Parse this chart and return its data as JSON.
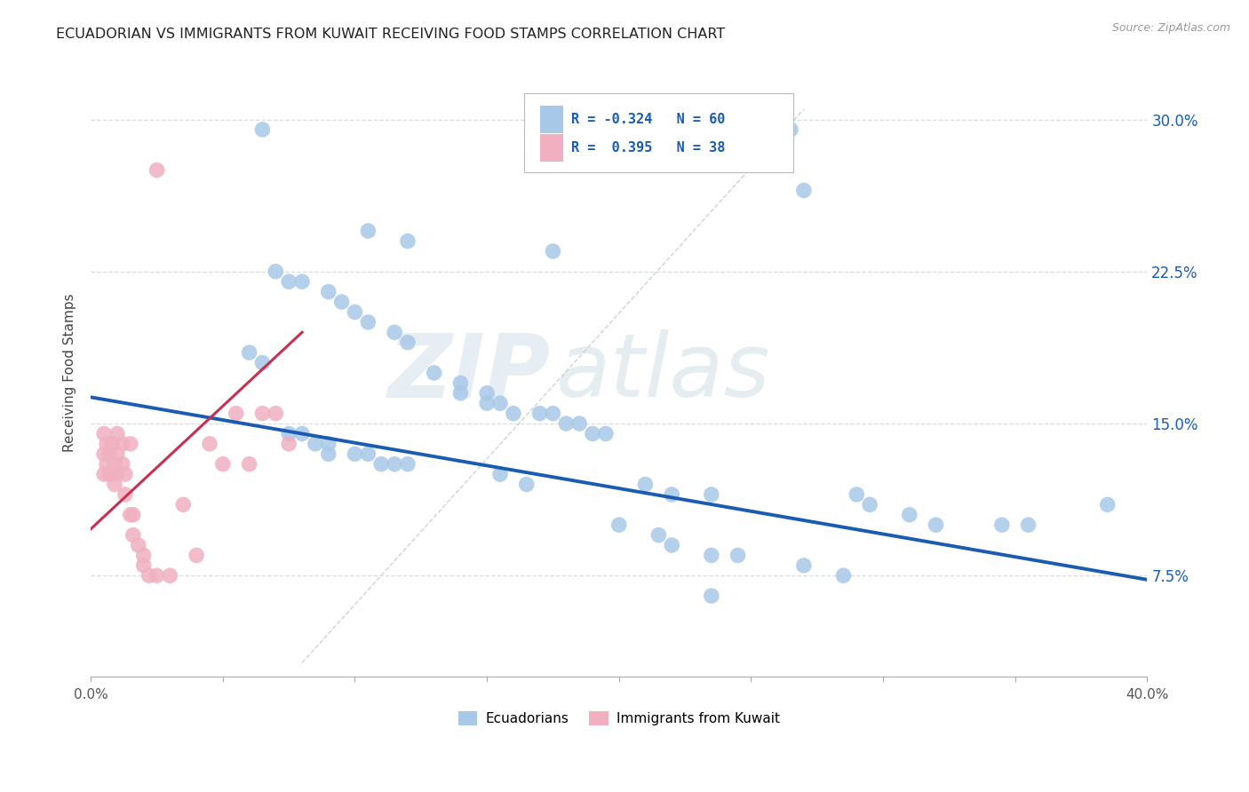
{
  "title": "ECUADORIAN VS IMMIGRANTS FROM KUWAIT RECEIVING FOOD STAMPS CORRELATION CHART",
  "source": "Source: ZipAtlas.com",
  "ylabel": "Receiving Food Stamps",
  "yticks": [
    "7.5%",
    "15.0%",
    "22.5%",
    "30.0%"
  ],
  "ytick_vals": [
    0.075,
    0.15,
    0.225,
    0.3
  ],
  "xlim": [
    0.0,
    0.4
  ],
  "ylim": [
    0.025,
    0.325
  ],
  "legend_labels": [
    "Ecuadorians",
    "Immigrants from Kuwait"
  ],
  "blue_color": "#a8c8e8",
  "pink_color": "#f0b0c0",
  "blue_line_color": "#1a5cb0",
  "pink_line_color": "#c83050",
  "blue_scatter": {
    "x": [
      0.265,
      0.065,
      0.27,
      0.105,
      0.12,
      0.175,
      0.07,
      0.075,
      0.08,
      0.09,
      0.095,
      0.1,
      0.105,
      0.115,
      0.12,
      0.06,
      0.065,
      0.13,
      0.14,
      0.14,
      0.15,
      0.15,
      0.155,
      0.16,
      0.17,
      0.175,
      0.18,
      0.185,
      0.19,
      0.195,
      0.075,
      0.08,
      0.085,
      0.09,
      0.09,
      0.1,
      0.105,
      0.11,
      0.115,
      0.12,
      0.155,
      0.165,
      0.21,
      0.22,
      0.235,
      0.29,
      0.295,
      0.31,
      0.32,
      0.345,
      0.355,
      0.2,
      0.215,
      0.22,
      0.235,
      0.245,
      0.27,
      0.285,
      0.385,
      0.235
    ],
    "y": [
      0.295,
      0.295,
      0.265,
      0.245,
      0.24,
      0.235,
      0.225,
      0.22,
      0.22,
      0.215,
      0.21,
      0.205,
      0.2,
      0.195,
      0.19,
      0.185,
      0.18,
      0.175,
      0.17,
      0.165,
      0.165,
      0.16,
      0.16,
      0.155,
      0.155,
      0.155,
      0.15,
      0.15,
      0.145,
      0.145,
      0.145,
      0.145,
      0.14,
      0.14,
      0.135,
      0.135,
      0.135,
      0.13,
      0.13,
      0.13,
      0.125,
      0.12,
      0.12,
      0.115,
      0.115,
      0.115,
      0.11,
      0.105,
      0.1,
      0.1,
      0.1,
      0.1,
      0.095,
      0.09,
      0.085,
      0.085,
      0.08,
      0.075,
      0.11,
      0.065
    ]
  },
  "pink_scatter": {
    "x": [
      0.005,
      0.005,
      0.005,
      0.006,
      0.006,
      0.007,
      0.007,
      0.008,
      0.008,
      0.009,
      0.009,
      0.01,
      0.01,
      0.01,
      0.012,
      0.012,
      0.013,
      0.013,
      0.015,
      0.015,
      0.016,
      0.016,
      0.018,
      0.02,
      0.02,
      0.022,
      0.025,
      0.03,
      0.035,
      0.04,
      0.045,
      0.05,
      0.055,
      0.06,
      0.065,
      0.07,
      0.075,
      0.025
    ],
    "y": [
      0.145,
      0.135,
      0.125,
      0.14,
      0.13,
      0.135,
      0.125,
      0.14,
      0.125,
      0.13,
      0.12,
      0.145,
      0.135,
      0.125,
      0.14,
      0.13,
      0.125,
      0.115,
      0.14,
      0.105,
      0.105,
      0.095,
      0.09,
      0.085,
      0.08,
      0.075,
      0.075,
      0.075,
      0.11,
      0.085,
      0.14,
      0.13,
      0.155,
      0.13,
      0.155,
      0.155,
      0.14,
      0.275
    ]
  },
  "blue_trend": {
    "x_start": 0.0,
    "x_end": 0.4,
    "y_start": 0.163,
    "y_end": 0.073
  },
  "pink_trend": {
    "x_start": 0.0,
    "x_end": 0.08,
    "y_start": 0.098,
    "y_end": 0.195
  },
  "diag_line": {
    "x_start": 0.08,
    "x_end": 0.27,
    "y_start": 0.032,
    "y_end": 0.305
  },
  "watermark_zip": "ZIP",
  "watermark_atlas": "atlas",
  "title_fontsize": 11.5,
  "axis_fontsize": 11,
  "tick_fontsize": 11
}
